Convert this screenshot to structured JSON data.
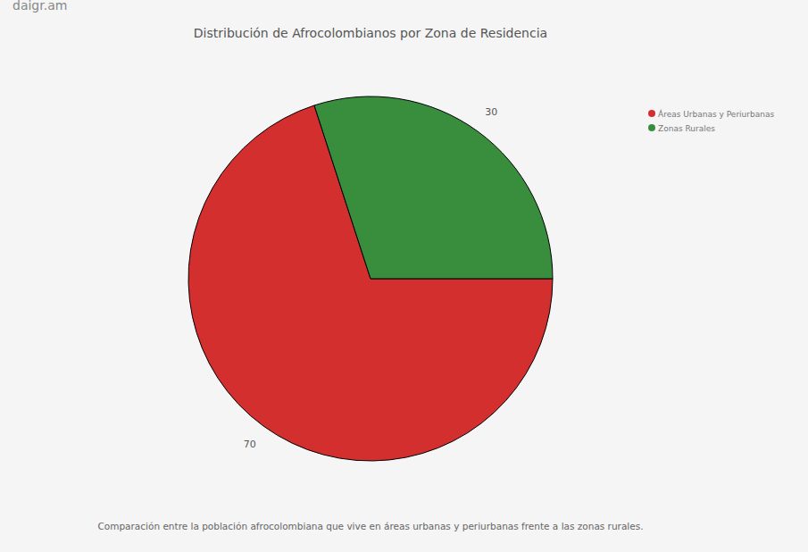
{
  "chart_data": {
    "type": "pie",
    "title": "Distribución de Afrocolombianos por Zona de Residencia",
    "subtitle": "Comparación entre la población afrocolombiana que vive en áreas urbanas y periurbanas frente a las zonas rurales.",
    "annotations": [
      "daigr.am"
    ],
    "categories": [
      "Áreas Urbanas y Periurbanas",
      "Zonas Rurales"
    ],
    "values": [
      70,
      30
    ],
    "colors": [
      "#d32f2f",
      "#388e3c"
    ],
    "legend": "top-right",
    "data_labels": true
  }
}
